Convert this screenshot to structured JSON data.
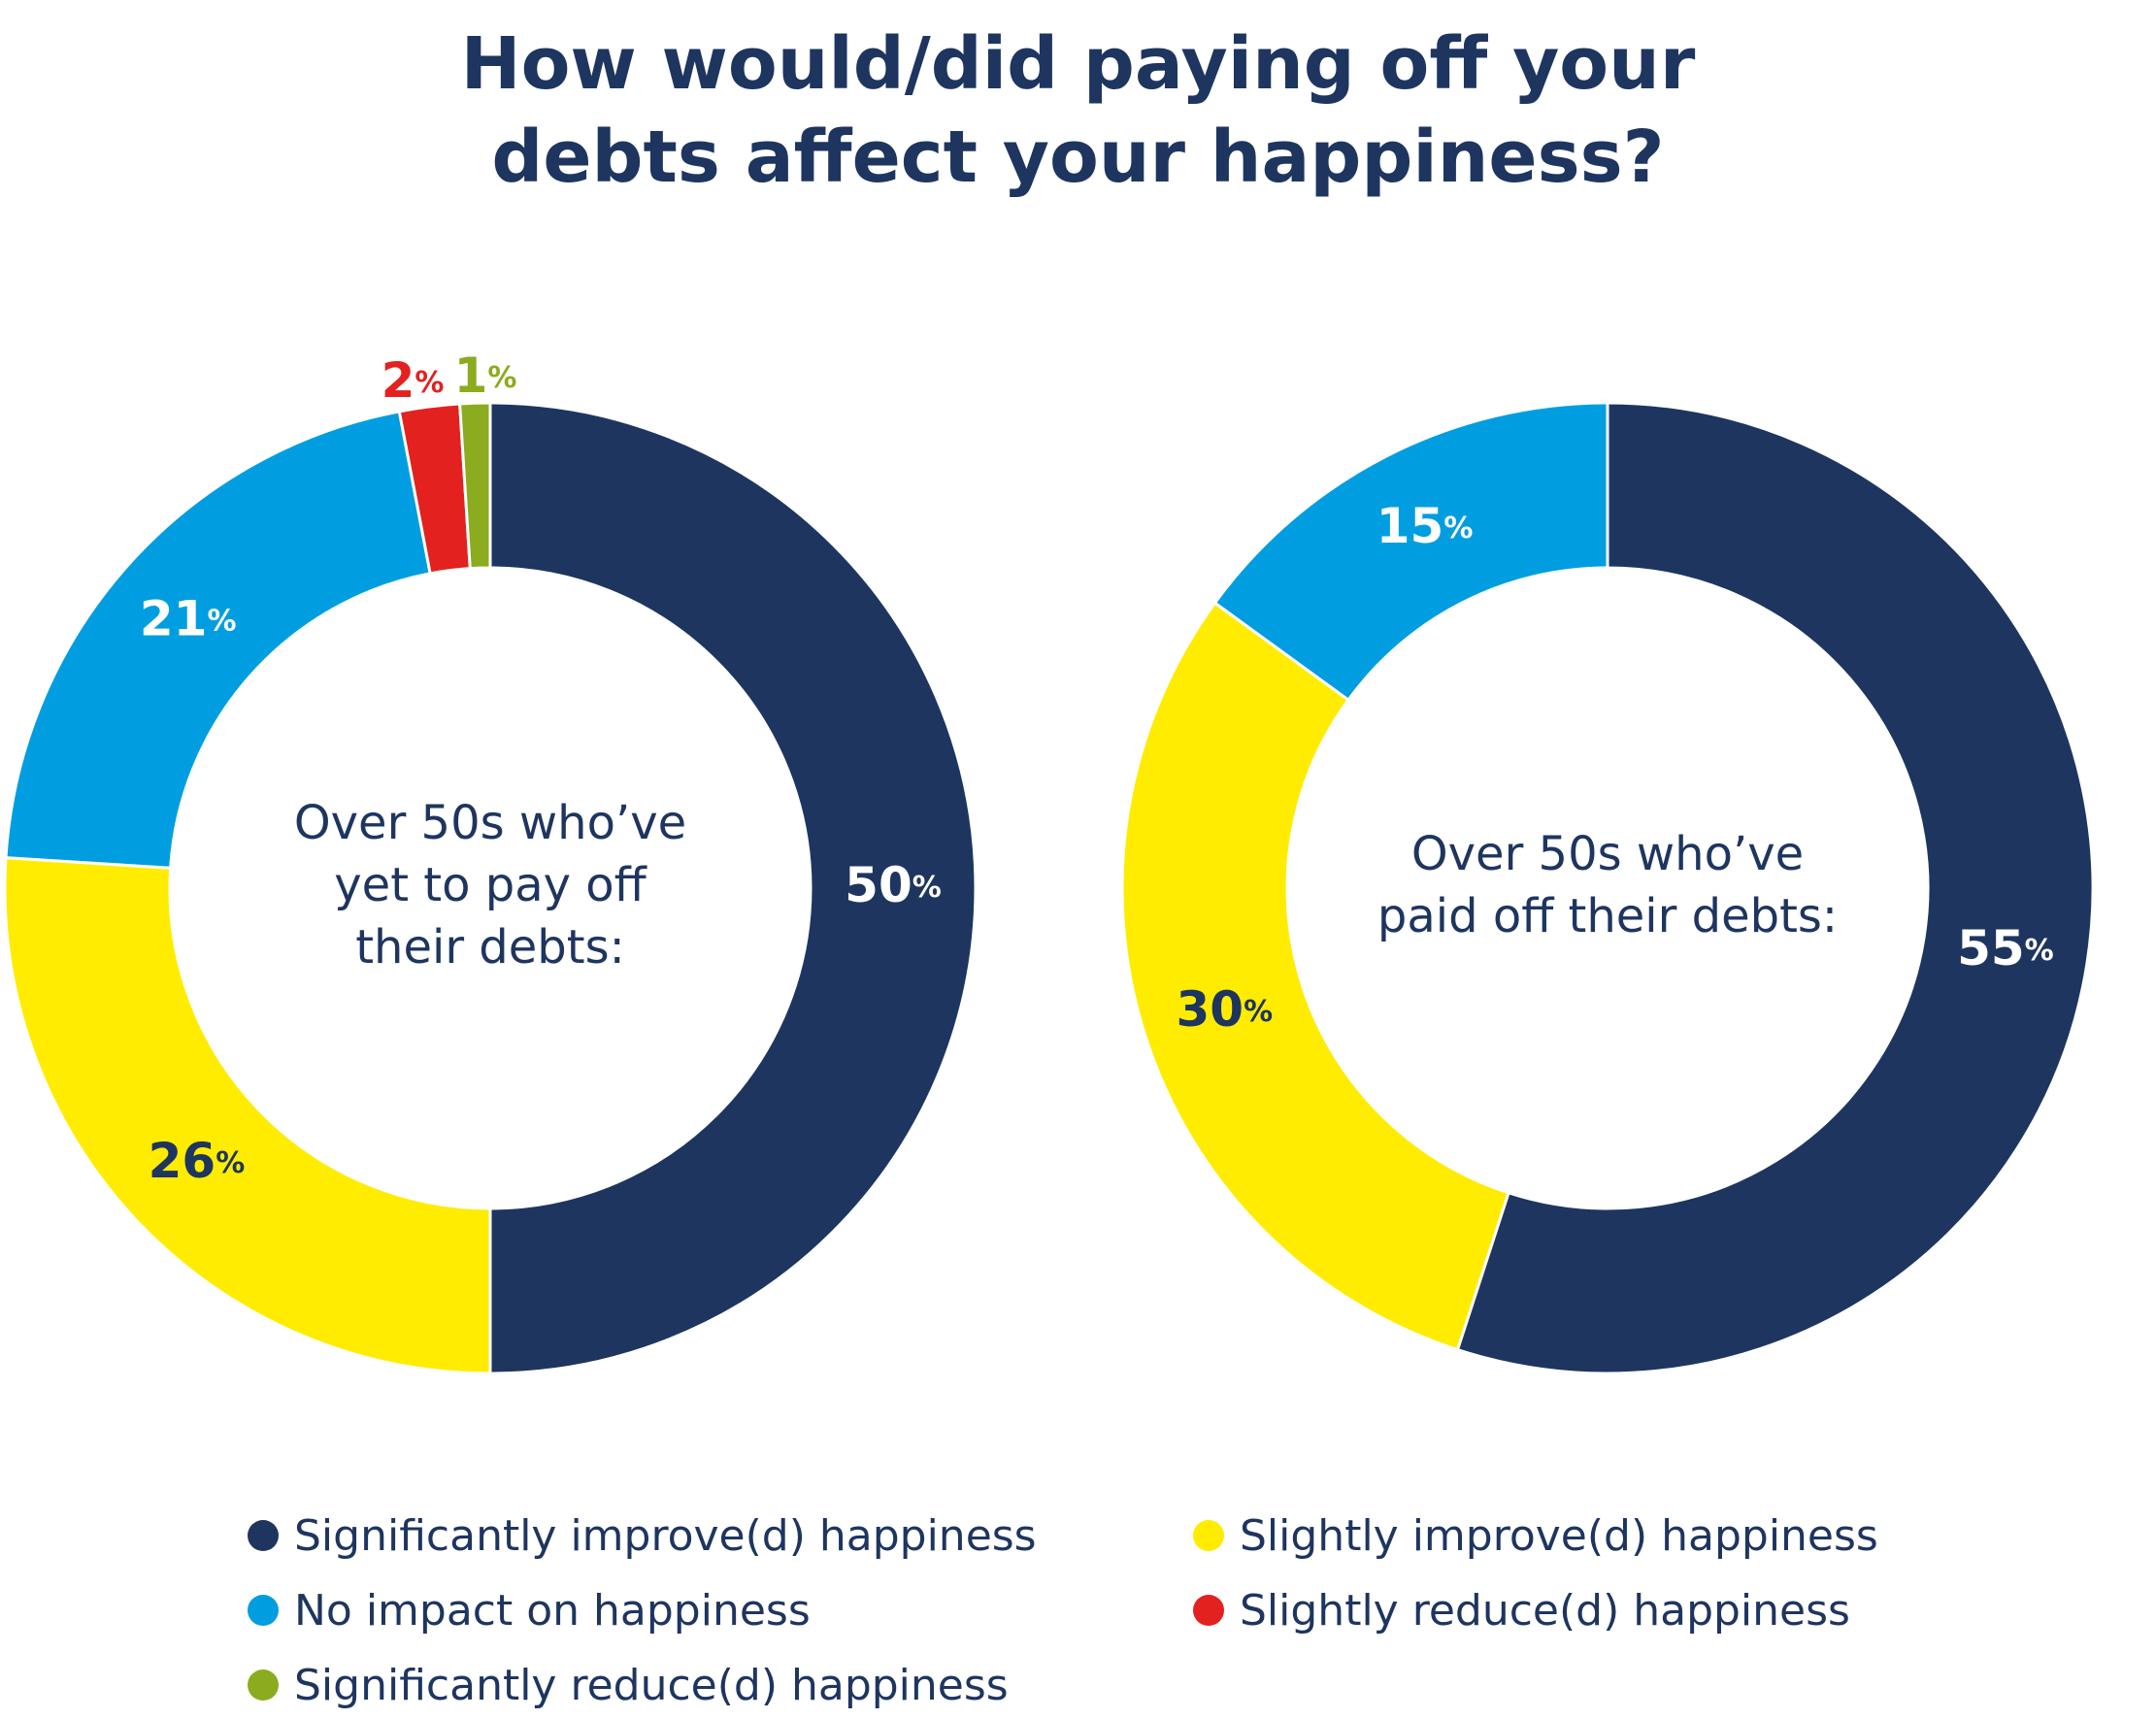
{
  "title_line1": "How would/did paying off your",
  "title_line2": "debts affect your happiness?",
  "chart_data": [
    {
      "type": "pie",
      "center_label": [
        "Over 50s who’ve",
        "yet to pay off",
        "their debts:"
      ],
      "slices": [
        {
          "label": "Significantly improve(d) happiness",
          "value": 50,
          "display": "50",
          "color": "#1e3560",
          "text_color": "#ffffff"
        },
        {
          "label": "Slightly improve(d) happiness",
          "value": 26,
          "display": "26",
          "color": "#ffec00",
          "text_color": "#1e3560"
        },
        {
          "label": "No impact on happiness",
          "value": 21,
          "display": "21",
          "color": "#009ee0",
          "text_color": "#ffffff"
        },
        {
          "label": "Slightly reduce(d) happiness",
          "value": 2,
          "display": "2",
          "color": "#e3211f",
          "text_color": "#e3211f"
        },
        {
          "label": "Significantly reduce(d) happiness",
          "value": 1,
          "display": "1",
          "color": "#8aac1e",
          "text_color": "#8aac1e"
        }
      ]
    },
    {
      "type": "pie",
      "center_label": [
        "Over 50s who’ve",
        "paid off their debts:"
      ],
      "slices": [
        {
          "label": "Significantly improve(d) happiness",
          "value": 55,
          "display": "55",
          "color": "#1e3560",
          "text_color": "#ffffff"
        },
        {
          "label": "Slightly improve(d) happiness",
          "value": 30,
          "display": "30",
          "color": "#ffec00",
          "text_color": "#1e3560"
        },
        {
          "label": "No impact on happiness",
          "value": 15,
          "display": "15",
          "color": "#009ee0",
          "text_color": "#ffffff"
        }
      ]
    }
  ],
  "percent_sign": "%",
  "legend": [
    {
      "label": "Significantly improve(d) happiness",
      "color": "#1e3560"
    },
    {
      "label": "Slightly improve(d) happiness",
      "color": "#ffec00"
    },
    {
      "label": "No impact on happiness",
      "color": "#009ee0"
    },
    {
      "label": "Slightly reduce(d) happiness",
      "color": "#e3211f"
    },
    {
      "label": "Significantly reduce(d) happiness",
      "color": "#8aac1e"
    }
  ]
}
